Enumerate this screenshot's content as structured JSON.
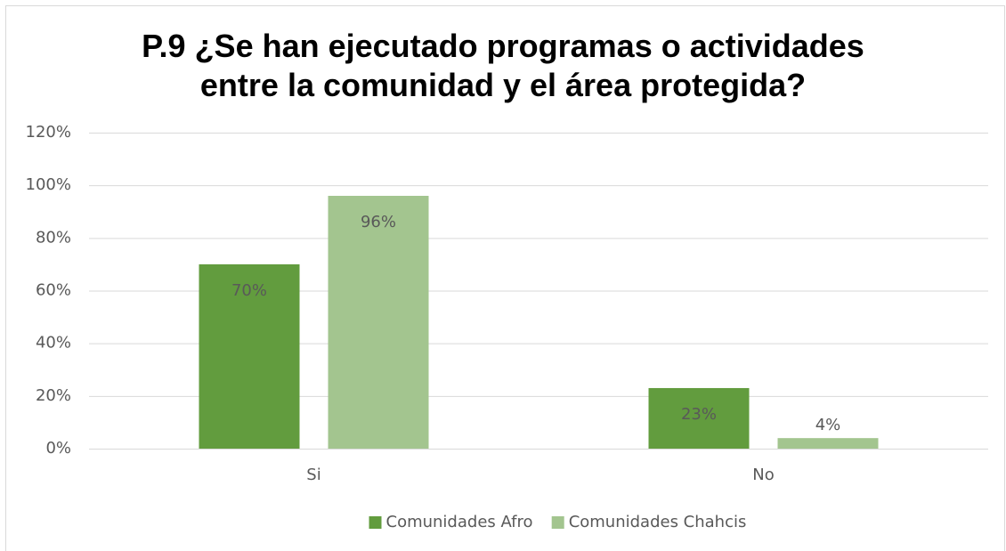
{
  "chart_data": {
    "type": "bar",
    "title": "P.9 ¿Se han ejecutado programas o actividades entre la comunidad y el área protegida?",
    "categories": [
      "Si",
      "No"
    ],
    "series": [
      {
        "name": "Comunidades Afro",
        "color": "#629c3e",
        "values": [
          70,
          23
        ],
        "value_labels": [
          "70%",
          "23%"
        ]
      },
      {
        "name": "Comunidades Chahcis",
        "color": "#a3c58f",
        "values": [
          96,
          4
        ],
        "value_labels": [
          "96%",
          "4%"
        ]
      }
    ],
    "ylim": [
      0,
      120
    ],
    "yticks": [
      {
        "value": 0,
        "label": "0%"
      },
      {
        "value": 20,
        "label": "20%"
      },
      {
        "value": 40,
        "label": "40%"
      },
      {
        "value": 60,
        "label": "60%"
      },
      {
        "value": 80,
        "label": "80%"
      },
      {
        "value": 100,
        "label": "100%"
      },
      {
        "value": 120,
        "label": "120%"
      }
    ],
    "grid": true,
    "legend": "bottom"
  }
}
